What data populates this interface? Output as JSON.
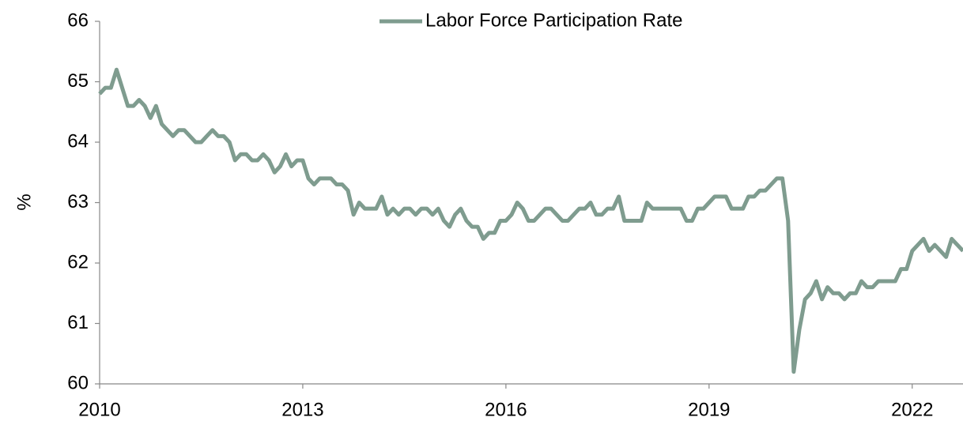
{
  "chart_data": {
    "type": "line",
    "y_label": "%",
    "legend": "top",
    "x": [
      2010,
      2010.083,
      2010.167,
      2010.25,
      2010.333,
      2010.417,
      2010.5,
      2010.583,
      2010.667,
      2010.75,
      2010.833,
      2010.917,
      2011,
      2011.083,
      2011.167,
      2011.25,
      2011.333,
      2011.417,
      2011.5,
      2011.583,
      2011.667,
      2011.75,
      2011.833,
      2011.917,
      2012,
      2012.083,
      2012.167,
      2012.25,
      2012.333,
      2012.417,
      2012.5,
      2012.583,
      2012.667,
      2012.75,
      2012.833,
      2012.917,
      2013,
      2013.083,
      2013.167,
      2013.25,
      2013.333,
      2013.417,
      2013.5,
      2013.583,
      2013.667,
      2013.75,
      2013.833,
      2013.917,
      2014,
      2014.083,
      2014.167,
      2014.25,
      2014.333,
      2014.417,
      2014.5,
      2014.583,
      2014.667,
      2014.75,
      2014.833,
      2014.917,
      2015,
      2015.083,
      2015.167,
      2015.25,
      2015.333,
      2015.417,
      2015.5,
      2015.583,
      2015.667,
      2015.75,
      2015.833,
      2015.917,
      2016,
      2016.083,
      2016.167,
      2016.25,
      2016.333,
      2016.417,
      2016.5,
      2016.583,
      2016.667,
      2016.75,
      2016.833,
      2016.917,
      2017,
      2017.083,
      2017.167,
      2017.25,
      2017.333,
      2017.417,
      2017.5,
      2017.583,
      2017.667,
      2017.75,
      2017.833,
      2017.917,
      2018,
      2018.083,
      2018.167,
      2018.25,
      2018.333,
      2018.417,
      2018.5,
      2018.583,
      2018.667,
      2018.75,
      2018.833,
      2018.917,
      2019,
      2019.083,
      2019.167,
      2019.25,
      2019.333,
      2019.417,
      2019.5,
      2019.583,
      2019.667,
      2019.75,
      2019.833,
      2019.917,
      2020,
      2020.083,
      2020.167,
      2020.25,
      2020.333,
      2020.417,
      2020.5,
      2020.583,
      2020.667,
      2020.75,
      2020.833,
      2020.917,
      2021,
      2021.083,
      2021.167,
      2021.25,
      2021.333,
      2021.417,
      2021.5,
      2021.583,
      2021.667,
      2021.75,
      2021.833,
      2021.917,
      2022,
      2022.083,
      2022.167,
      2022.25,
      2022.333,
      2022.417,
      2022.5,
      2022.583,
      2022.667,
      2022.75
    ],
    "series": [
      {
        "name": "Labor Force Participation Rate",
        "color": "#7f9c8f",
        "values": [
          64.8,
          64.9,
          64.9,
          65.2,
          64.9,
          64.6,
          64.6,
          64.7,
          64.6,
          64.4,
          64.6,
          64.3,
          64.2,
          64.1,
          64.2,
          64.2,
          64.1,
          64.0,
          64.0,
          64.1,
          64.2,
          64.1,
          64.1,
          64.0,
          63.7,
          63.8,
          63.8,
          63.7,
          63.7,
          63.8,
          63.7,
          63.5,
          63.6,
          63.8,
          63.6,
          63.7,
          63.7,
          63.4,
          63.3,
          63.4,
          63.4,
          63.4,
          63.3,
          63.3,
          63.2,
          62.8,
          63.0,
          62.9,
          62.9,
          62.9,
          63.1,
          62.8,
          62.9,
          62.8,
          62.9,
          62.9,
          62.8,
          62.9,
          62.9,
          62.8,
          62.9,
          62.7,
          62.6,
          62.8,
          62.9,
          62.7,
          62.6,
          62.6,
          62.4,
          62.5,
          62.5,
          62.7,
          62.7,
          62.8,
          63.0,
          62.9,
          62.7,
          62.7,
          62.8,
          62.9,
          62.9,
          62.8,
          62.7,
          62.7,
          62.8,
          62.9,
          62.9,
          63.0,
          62.8,
          62.8,
          62.9,
          62.9,
          63.1,
          62.7,
          62.7,
          62.7,
          62.7,
          63.0,
          62.9,
          62.9,
          62.9,
          62.9,
          62.9,
          62.9,
          62.7,
          62.7,
          62.9,
          62.9,
          63.0,
          63.1,
          63.1,
          63.1,
          62.9,
          62.9,
          62.9,
          63.1,
          63.1,
          63.2,
          63.2,
          63.3,
          63.4,
          63.4,
          62.7,
          60.2,
          60.9,
          61.4,
          61.5,
          61.7,
          61.4,
          61.6,
          61.5,
          61.5,
          61.4,
          61.5,
          61.5,
          61.7,
          61.6,
          61.6,
          61.7,
          61.7,
          61.7,
          61.7,
          61.9,
          61.9,
          62.2,
          62.3,
          62.4,
          62.2,
          62.3,
          62.2,
          62.1,
          62.4,
          62.3,
          62.2
        ]
      }
    ],
    "xlim": [
      2010,
      2022.75
    ],
    "xticks": [
      2010,
      2013,
      2016,
      2019,
      2022
    ],
    "ylim": [
      60,
      66
    ],
    "yticks": [
      60,
      61,
      62,
      63,
      64,
      65,
      66
    ]
  }
}
